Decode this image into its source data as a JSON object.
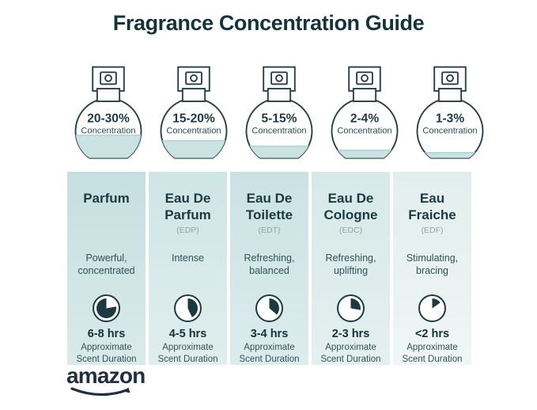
{
  "title": "Fragrance Concentration Guide",
  "labels": {
    "concentration": "Concentration",
    "approx_line1": "Approximate",
    "approx_line2": "Scent Duration"
  },
  "brand": {
    "logo_text": "amazon"
  },
  "colors": {
    "ink": "#1d3a42",
    "title": "#15333b",
    "liquid": "#cbe2e3",
    "liquid_line": "#b5d5d7",
    "logo": "#232f3e"
  },
  "columns": [
    {
      "name": "Parfum",
      "abbr": "",
      "concentration": "20-30%",
      "fill_percent": 38,
      "description": "Powerful, concentrated",
      "duration": "6-8 hrs",
      "clock": {
        "start": 80,
        "end": 360
      },
      "bg_top": "#c6dfe0",
      "bg_bottom": "#d9eae9"
    },
    {
      "name": "Eau De Parfum",
      "abbr": "(EDP)",
      "concentration": "15-20%",
      "fill_percent": 29,
      "description": "Intense",
      "duration": "4-5 hrs",
      "clock": {
        "start": 0,
        "end": 155
      },
      "bg_top": "#cfe5e5",
      "bg_bottom": "#e0eeed"
    },
    {
      "name": "Eau De Toilette",
      "abbr": "(EDT)",
      "concentration": "5-15%",
      "fill_percent": 20,
      "description": "Refreshing, balanced",
      "duration": "3-4 hrs",
      "clock": {
        "start": 0,
        "end": 130
      },
      "bg_top": "#cbe2e3",
      "bg_bottom": "#dcecec"
    },
    {
      "name": "Eau De Cologne",
      "abbr": "(EDC)",
      "concentration": "2-4%",
      "fill_percent": 13,
      "description": "Refreshing, uplifting",
      "duration": "2-3 hrs",
      "clock": {
        "start": 0,
        "end": 100
      },
      "bg_top": "#d6e9e8",
      "bg_bottom": "#e4f0ef"
    },
    {
      "name": "Eau Fraiche",
      "abbr": "(EDF)",
      "concentration": "1-3%",
      "fill_percent": 9,
      "description": "Stimulating, bracing",
      "duration": "<2 hrs",
      "clock": {
        "start": 0,
        "end": 55
      },
      "bg_top": "#e2eeed",
      "bg_bottom": "#f0f6f5"
    }
  ]
}
